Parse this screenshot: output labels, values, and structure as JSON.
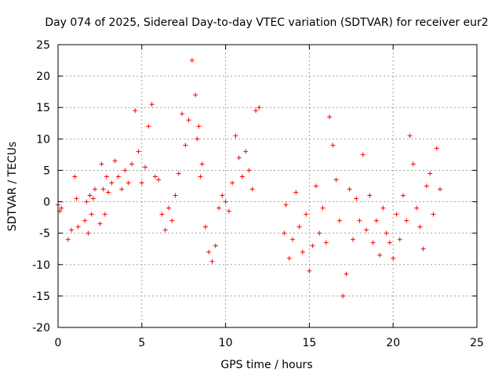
{
  "chart_data": {
    "type": "scatter",
    "title": "Day 074 of 2025, Sidereal Day-to-day VTEC variation (SDTVAR) for receiver eur2",
    "xlabel": "GPS time / hours",
    "ylabel": "SDTVAR / TECUs",
    "xlim": [
      0,
      25
    ],
    "ylim": [
      -20,
      25
    ],
    "xticks": [
      "0",
      "5",
      "10",
      "15",
      "20",
      "25"
    ],
    "yticks": [
      "25",
      "20",
      "15",
      "10",
      "5",
      "0",
      "-5",
      "-10",
      "-15",
      "-20"
    ],
    "grid": true,
    "marker": "plus",
    "color": "#ff0000",
    "series": [
      {
        "name": "SDTVAR",
        "x": [
          0.0,
          0.1,
          0.2,
          0.6,
          0.8,
          1.0,
          1.1,
          1.2,
          1.6,
          1.7,
          1.8,
          1.9,
          2.0,
          2.1,
          2.2,
          2.5,
          2.6,
          2.7,
          2.8,
          2.9,
          3.0,
          3.2,
          3.4,
          3.6,
          3.8,
          4.0,
          4.2,
          4.4,
          4.6,
          4.8,
          5.0,
          5.2,
          5.4,
          5.6,
          5.8,
          6.0,
          6.2,
          6.4,
          6.6,
          6.8,
          7.0,
          7.2,
          7.4,
          7.6,
          7.8,
          8.0,
          8.2,
          8.3,
          8.4,
          8.5,
          8.6,
          8.8,
          9.0,
          9.2,
          9.4,
          9.6,
          9.8,
          10.0,
          10.2,
          10.4,
          10.6,
          10.8,
          11.0,
          11.2,
          11.4,
          11.6,
          11.8,
          12.0,
          13.5,
          13.6,
          13.8,
          14.0,
          14.2,
          14.4,
          14.6,
          14.8,
          15.0,
          15.2,
          15.4,
          15.6,
          15.8,
          16.0,
          16.2,
          16.4,
          16.6,
          16.8,
          17.0,
          17.2,
          17.4,
          17.6,
          17.8,
          18.0,
          18.2,
          18.4,
          18.6,
          18.8,
          19.0,
          19.2,
          19.4,
          19.6,
          19.8,
          20.0,
          20.2,
          20.4,
          20.6,
          20.8,
          21.0,
          21.2,
          21.4,
          21.6,
          21.8,
          22.0,
          22.2,
          22.4,
          22.6,
          22.8
        ],
        "y": [
          -0.5,
          -1.5,
          -1.0,
          -6.0,
          -4.5,
          4.0,
          0.5,
          -4.0,
          -3.0,
          0.0,
          -5.0,
          1.0,
          -2.0,
          0.5,
          2.0,
          -3.5,
          6.0,
          2.0,
          -2.0,
          4.0,
          1.5,
          3.0,
          6.5,
          4.0,
          2.0,
          5.0,
          3.0,
          6.0,
          14.5,
          8.0,
          3.0,
          5.5,
          12.0,
          15.5,
          4.0,
          3.5,
          -2.0,
          -4.5,
          -1.0,
          -3.0,
          1.0,
          4.5,
          14.0,
          9.0,
          13.0,
          22.5,
          17.0,
          10.0,
          12.0,
          4.0,
          6.0,
          -4.0,
          -8.0,
          -9.5,
          -7.0,
          -1.0,
          1.0,
          0.0,
          -1.5,
          3.0,
          10.5,
          7.0,
          4.0,
          8.0,
          5.0,
          2.0,
          14.5,
          15.0,
          -5.0,
          -0.5,
          -9.0,
          -6.0,
          1.5,
          -4.0,
          -8.0,
          -2.0,
          -11.0,
          -7.0,
          2.5,
          -5.0,
          -1.0,
          -6.5,
          13.5,
          9.0,
          3.5,
          -3.0,
          -15.0,
          -11.5,
          2.0,
          -6.0,
          0.5,
          -3.0,
          7.5,
          -4.5,
          1.0,
          -6.5,
          -3.0,
          -8.5,
          -1.0,
          -5.0,
          -6.5,
          -9.0,
          -2.0,
          -6.0,
          1.0,
          -3.0,
          10.5,
          6.0,
          -1.0,
          -4.0,
          -7.5,
          2.5,
          4.5,
          -2.0,
          8.5,
          2.0
        ]
      }
    ]
  }
}
